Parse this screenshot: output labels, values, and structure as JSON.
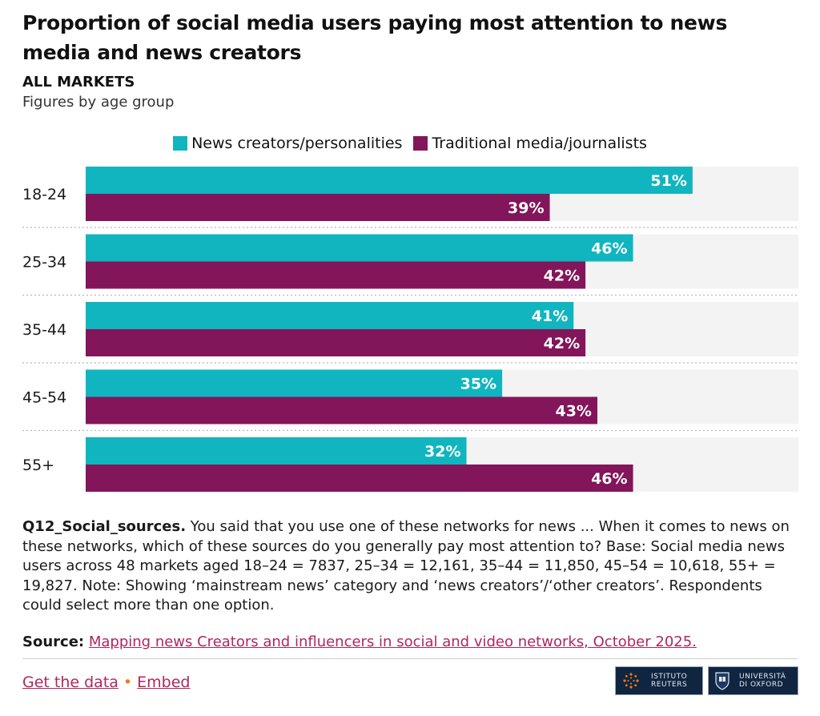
{
  "header": {
    "title": "Proportion of social media users paying most attention to news media and news creators",
    "market": "ALL MARKETS",
    "subtitle": "Figures by age group"
  },
  "colors": {
    "creators": "#10b5bf",
    "traditional": "#83155a",
    "track": "#f3f3f3",
    "link": "#b0265e"
  },
  "chart_data": {
    "type": "bar",
    "orientation": "horizontal",
    "categories": [
      "18-24",
      "25-34",
      "35-44",
      "45-54",
      "55+"
    ],
    "series": [
      {
        "name": "News creators/personalities",
        "values": [
          51,
          46,
          41,
          35,
          32
        ]
      },
      {
        "name": "Traditional media/journalists",
        "values": [
          39,
          42,
          42,
          43,
          46
        ]
      }
    ],
    "value_suffix": "%",
    "xlim": [
      0,
      60
    ],
    "legend": "top-center",
    "grid": false
  },
  "note": {
    "label": "Q12_Social_sources.",
    "text": " You said that you use one of these networks for news ... When it comes to news on these networks, which of these sources do you generally pay most attention to? Base: Social media news users across 48 markets aged 18–24 = 7837, 25–34 = 12,161, 35–44 = 11,850, 45–54 = 10,618, 55+ = 19,827. Note: Showing ‘mainstream news’ category and ‘news creators’/‘other creators’. Respondents could select more than one option."
  },
  "source": {
    "label": "Source:",
    "link_text": "Mapping news Creators and influencers in social and video networks, October 2025."
  },
  "footer": {
    "get_data": "Get the data",
    "separator": "•",
    "embed": "Embed"
  },
  "logos": {
    "reuters": [
      "ISTITUTO",
      "REUTERS"
    ],
    "oxford": [
      "UNIVERSITÀ",
      "DI OXFORD"
    ]
  }
}
